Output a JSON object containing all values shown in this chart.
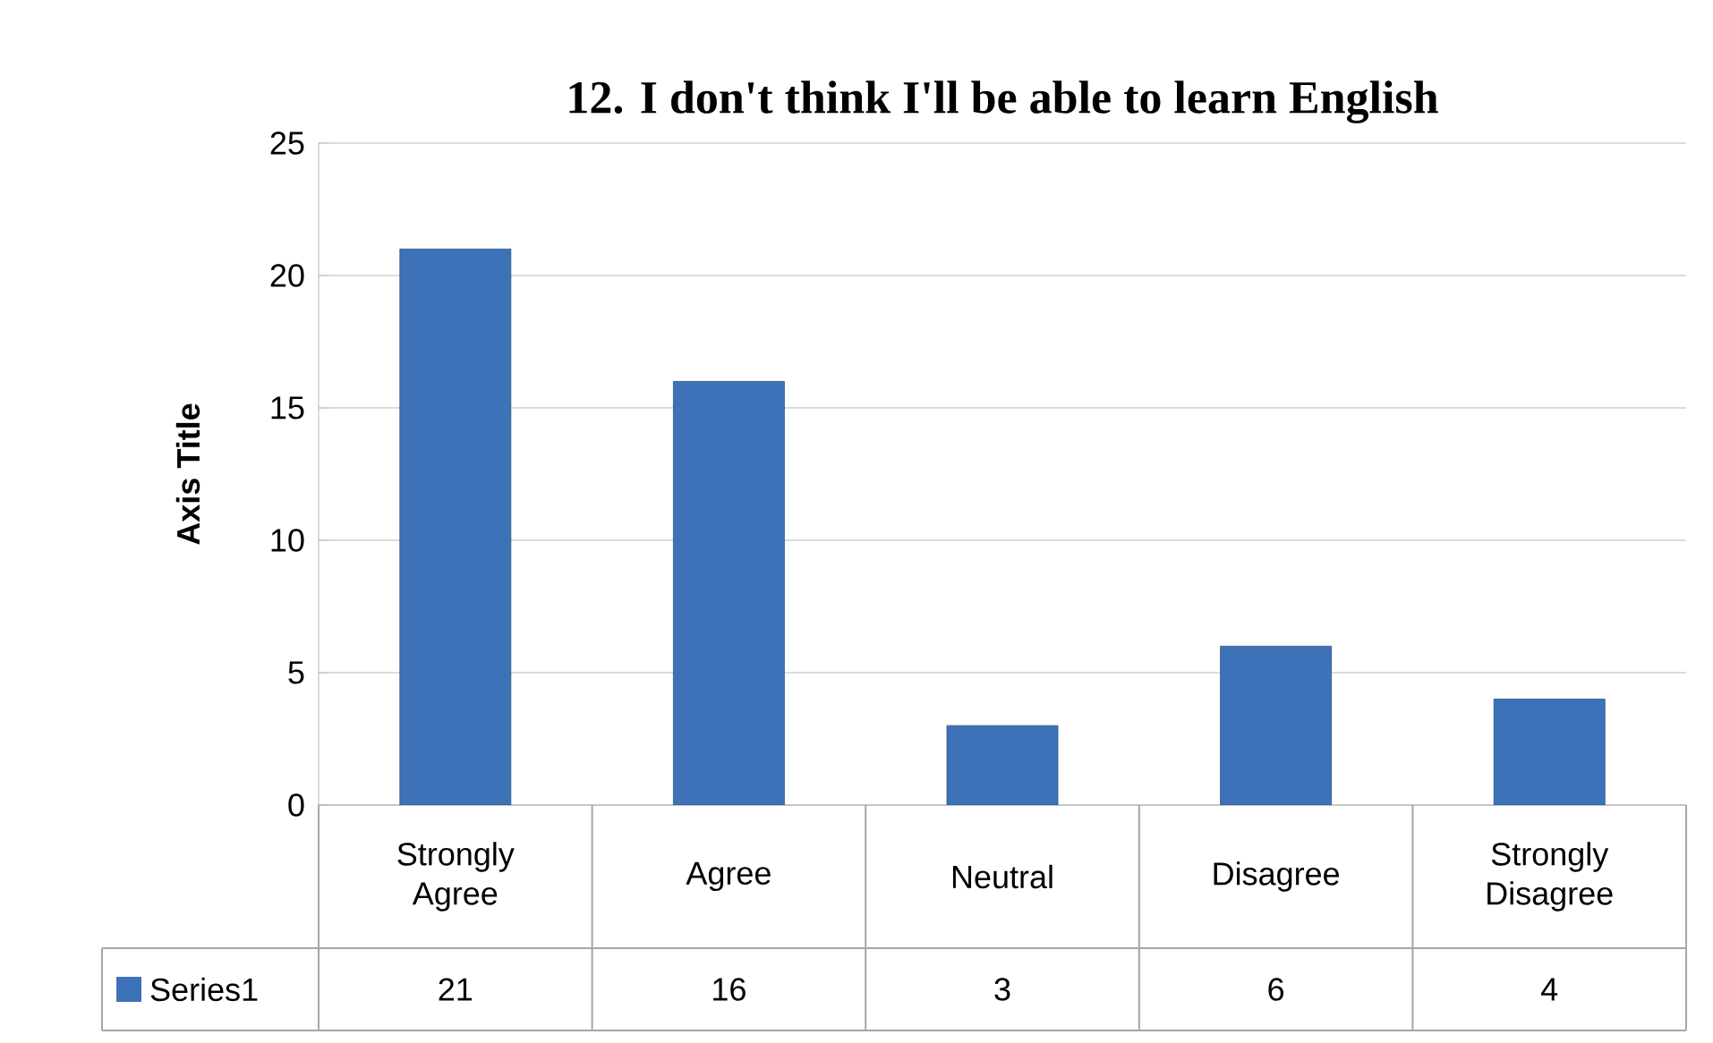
{
  "chart_data": {
    "type": "bar",
    "title": "12. I don't think I'll be able to learn English",
    "ylabel": "Axis Title",
    "categories": [
      "Strongly Agree",
      "Agree",
      "Neutral",
      "Disagree",
      "Strongly Disagree"
    ],
    "series": [
      {
        "name": "Series1",
        "color": "#3d72b8",
        "values": [
          21,
          16,
          3,
          6,
          4
        ]
      }
    ],
    "ylim": [
      0,
      25
    ],
    "yticks": [
      0,
      5,
      10,
      15,
      20,
      25
    ],
    "grid": "y",
    "legend": "bottom",
    "data_labels": true
  }
}
